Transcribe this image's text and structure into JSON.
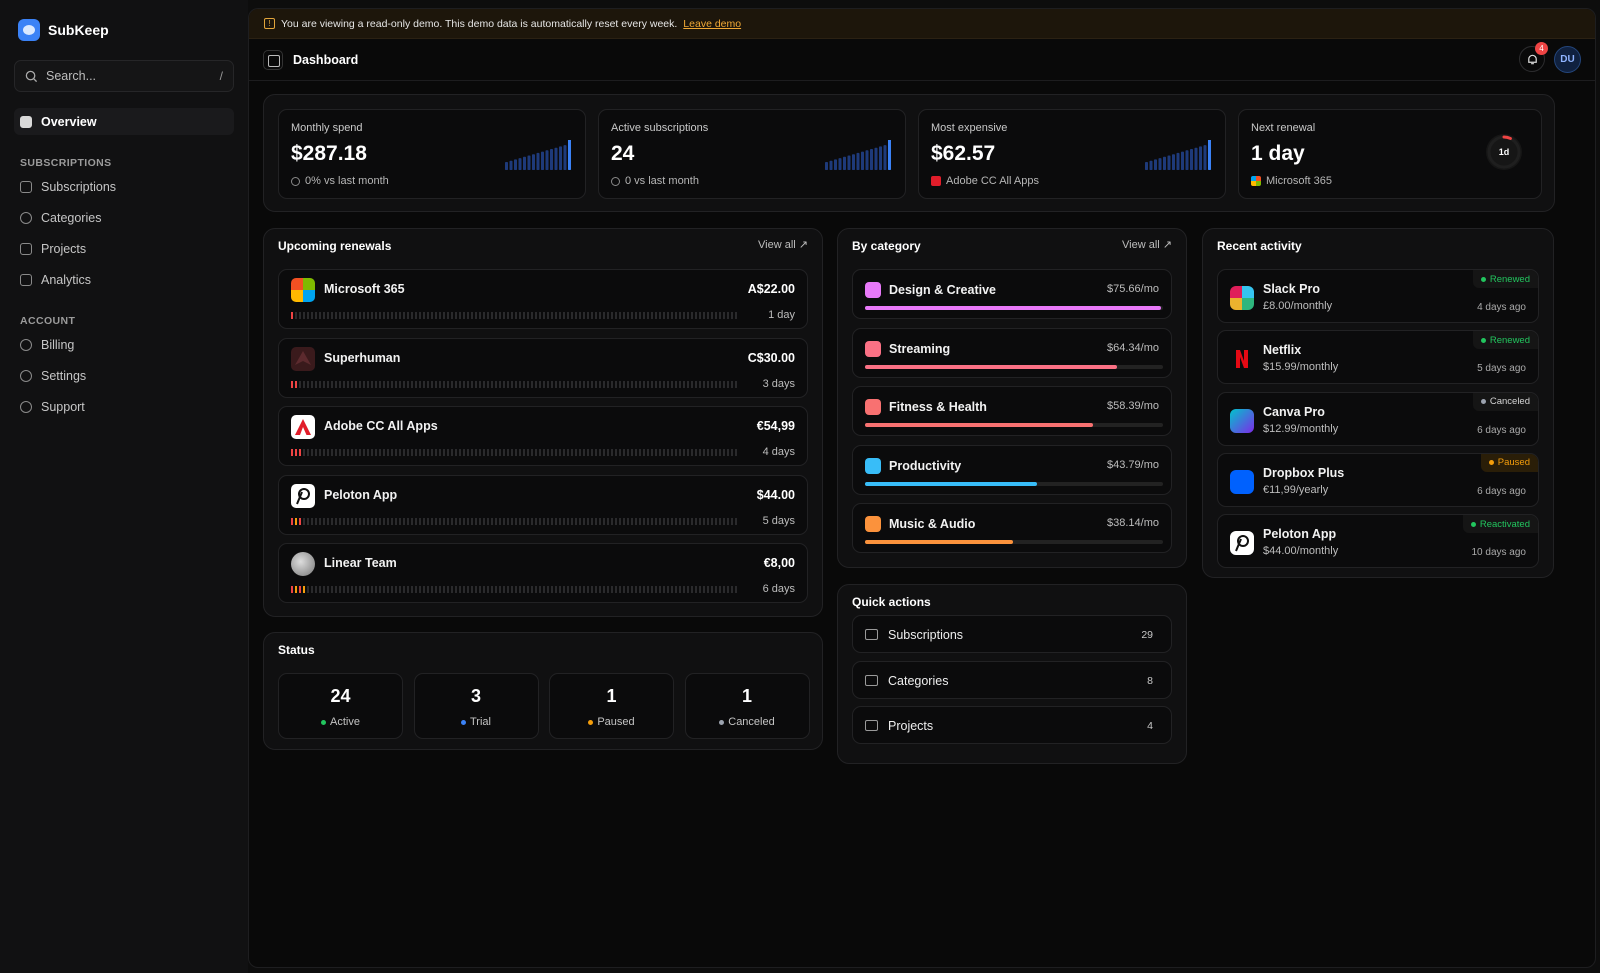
{
  "app": {
    "name": "SubKeep"
  },
  "search": {
    "placeholder": "Search...",
    "shortcut": "/"
  },
  "nav": {
    "overview": "Overview",
    "subscriptions_section": "SUBSCRIPTIONS",
    "subscriptions": "Subscriptions",
    "categories": "Categories",
    "projects": "Projects",
    "analytics": "Analytics",
    "account_section": "ACCOUNT",
    "billing": "Billing",
    "settings": "Settings",
    "support": "Support"
  },
  "banner": {
    "text": "You are viewing a read-only demo. This demo data is automatically reset every week.",
    "link": "Leave demo"
  },
  "header": {
    "title": "Dashboard",
    "notifications": "4",
    "avatar": "DU"
  },
  "stats": {
    "monthly": {
      "label": "Monthly spend",
      "value": "$287.18",
      "sub": "0% vs last month"
    },
    "active": {
      "label": "Active subscriptions",
      "value": "24",
      "sub": "0 vs last month"
    },
    "expensive": {
      "label": "Most expensive",
      "value": "$62.57",
      "sub": "Adobe CC All Apps"
    },
    "renewal": {
      "label": "Next renewal",
      "value": "1 day",
      "sub": "Microsoft 365",
      "ring": "1d",
      "ring_fraction": 0.07
    }
  },
  "renewals": {
    "title": "Upcoming renewals",
    "view_all": "View all ↗",
    "items": [
      {
        "name": "Microsoft 365",
        "price": "A$22.00",
        "days": "1 day",
        "progress": 0.005
      },
      {
        "name": "Superhuman",
        "price": "C$30.00",
        "days": "3 days",
        "progress": 0.017
      },
      {
        "name": "Adobe CC All Apps",
        "price": "€54,99",
        "days": "4 days",
        "progress": 0.022
      },
      {
        "name": "Peloton App",
        "price": "$44.00",
        "days": "5 days",
        "progress": 0.027
      },
      {
        "name": "Linear Team",
        "price": "€8,00",
        "days": "6 days",
        "progress": 0.033
      }
    ]
  },
  "categories": {
    "title": "By category",
    "view_all": "View all ↗",
    "items": [
      {
        "name": "Design & Creative",
        "amount": "$75.66/mo",
        "share": 1.0,
        "color": "#e879f9"
      },
      {
        "name": "Streaming",
        "amount": "$64.34/mo",
        "share": 0.85,
        "color": "#fb7185"
      },
      {
        "name": "Fitness & Health",
        "amount": "$58.39/mo",
        "share": 0.77,
        "color": "#f87171"
      },
      {
        "name": "Productivity",
        "amount": "$43.79/mo",
        "share": 0.58,
        "color": "#38bdf8"
      },
      {
        "name": "Music & Audio",
        "amount": "$38.14/mo",
        "share": 0.5,
        "color": "#fb923c"
      }
    ]
  },
  "activity": {
    "title": "Recent activity",
    "items": [
      {
        "name": "Slack Pro",
        "price": "£8.00/monthly",
        "status": "Renewed",
        "ago": "4 days ago",
        "status_color": "#22c55e"
      },
      {
        "name": "Netflix",
        "price": "$15.99/monthly",
        "status": "Renewed",
        "ago": "5 days ago",
        "status_color": "#22c55e"
      },
      {
        "name": "Canva Pro",
        "price": "$12.99/monthly",
        "status": "Canceled",
        "ago": "6 days ago",
        "status_color": "#9ca3af"
      },
      {
        "name": "Dropbox Plus",
        "price": "€11,99/yearly",
        "status": "Paused",
        "ago": "6 days ago",
        "status_color": "#f59e0b"
      },
      {
        "name": "Peloton App",
        "price": "$44.00/monthly",
        "status": "Reactivated",
        "ago": "10 days ago",
        "status_color": "#22c55e"
      }
    ]
  },
  "status": {
    "title": "Status",
    "items": [
      {
        "count": "24",
        "label": "Active",
        "color": "#22c55e"
      },
      {
        "count": "3",
        "label": "Trial",
        "color": "#3b82f6"
      },
      {
        "count": "1",
        "label": "Paused",
        "color": "#f59e0b"
      },
      {
        "count": "1",
        "label": "Canceled",
        "color": "#9ca3af"
      }
    ]
  },
  "quick": {
    "title": "Quick actions",
    "items": [
      {
        "name": "Subscriptions",
        "count": "29"
      },
      {
        "name": "Categories",
        "count": "8"
      },
      {
        "name": "Projects",
        "count": "4"
      }
    ]
  }
}
